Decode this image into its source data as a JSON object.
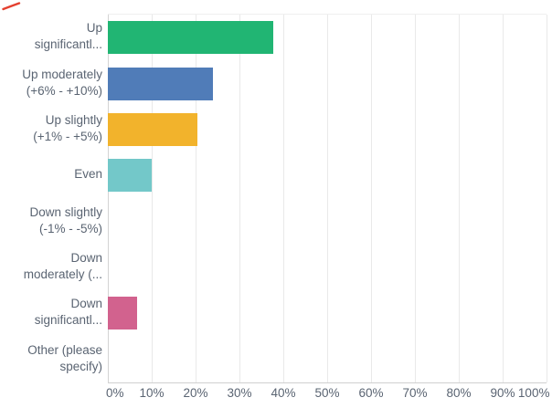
{
  "chart_data": {
    "type": "bar",
    "orientation": "horizontal",
    "title": "",
    "xlabel": "",
    "ylabel": "",
    "xlim": [
      0,
      100
    ],
    "grid": "vertical",
    "legend": "none",
    "categories": [
      "Up significantl...",
      "Up moderately (+6% - +10%)",
      "Up slightly (+1% - +5%)",
      "Even",
      "Down slightly (-1% - -5%)",
      "Down moderately (...",
      "Down significantl...",
      "Other (please specify)"
    ],
    "category_label_lines": [
      [
        "Up",
        "significantl..."
      ],
      [
        "Up moderately",
        "(+6% - +10%)"
      ],
      [
        "Up slightly",
        "(+1% - +5%)"
      ],
      [
        "Even"
      ],
      [
        "Down slightly",
        "(-1% - -5%)"
      ],
      [
        "Down",
        "moderately (..."
      ],
      [
        "Down",
        "significantl..."
      ],
      [
        "Other (please",
        "specify)"
      ]
    ],
    "values": [
      37.7,
      23.9,
      20.5,
      10.1,
      0,
      0,
      6.7,
      0
    ],
    "bar_colors": [
      "#21B573",
      "#507CB8",
      "#F2B32C",
      "#73C8C9",
      null,
      null,
      "#D2628E",
      null
    ],
    "x_ticks": [
      "0%",
      "10%",
      "20%",
      "30%",
      "40%",
      "50%",
      "60%",
      "70%",
      "80%",
      "90%",
      "100%"
    ]
  },
  "style_colors": {
    "background": "#FFFFFF",
    "text": "#5A6472",
    "gridline": "#E9E9E9",
    "axis_line": "#D4D4D4",
    "corner_mark": "#E4402F"
  }
}
